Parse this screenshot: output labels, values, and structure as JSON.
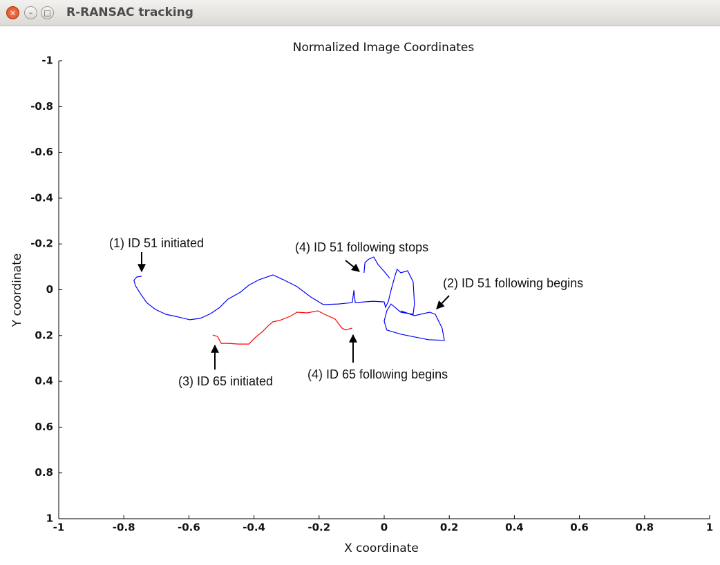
{
  "window_title": "R-RANSAC tracking",
  "chart_data": {
    "type": "line",
    "title": "Normalized Image Coordinates",
    "xlabel": "X coordinate",
    "ylabel": "Y coordinate",
    "xlim": [
      -1,
      1
    ],
    "ylim": [
      -1,
      1
    ],
    "y_reversed": true,
    "xticks": [
      -1,
      -0.8,
      -0.6,
      -0.4,
      -0.2,
      0,
      0.2,
      0.4,
      0.6,
      0.8,
      1
    ],
    "yticks": [
      -1,
      -0.8,
      -0.6,
      -0.4,
      -0.2,
      0,
      0.2,
      0.4,
      0.6,
      0.8,
      1
    ],
    "series": [
      {
        "color": "#0000ff",
        "x": [
          -0.745,
          -0.76,
          -0.769,
          -0.764,
          -0.749,
          -0.73,
          -0.703,
          -0.671,
          -0.633,
          -0.597,
          -0.565,
          -0.533,
          -0.505,
          -0.48,
          -0.442,
          -0.416,
          -0.384,
          -0.342,
          -0.31,
          -0.268,
          -0.225,
          -0.187,
          -0.14,
          -0.098,
          -0.093,
          -0.089,
          -0.034,
          0,
          0.004,
          0.013,
          0.021,
          0.034,
          0.04,
          0.051,
          0.072,
          0.089,
          0.093,
          0.089,
          0.051,
          0.021,
          0.008,
          0,
          0.008,
          0.051,
          0.093,
          0.136,
          0.185,
          0.178,
          0.157,
          0.14,
          0.093,
          0.051,
          null,
          -0.062,
          -0.059,
          -0.047,
          -0.032,
          -0.019,
          0,
          0.017
        ],
        "values": [
          -0.059,
          -0.056,
          -0.041,
          -0.017,
          0.017,
          0.056,
          0.086,
          0.107,
          0.119,
          0.131,
          0.125,
          0.104,
          0.077,
          0.041,
          0.011,
          -0.02,
          -0.044,
          -0.065,
          -0.044,
          -0.014,
          0.032,
          0.065,
          0.062,
          0.056,
          0.002,
          0.056,
          0.05,
          0.053,
          0.077,
          0.05,
          0.002,
          -0.065,
          -0.089,
          -0.074,
          -0.083,
          -0.035,
          0.062,
          0.107,
          0.098,
          0.062,
          0.092,
          0.137,
          0.176,
          0.194,
          0.206,
          0.218,
          0.221,
          0.167,
          0.107,
          0.098,
          0.113,
          0.092,
          null,
          -0.074,
          -0.119,
          -0.134,
          -0.143,
          -0.11,
          -0.08,
          -0.05
        ]
      },
      {
        "color": "#ff0000",
        "x": [
          -0.527,
          -0.512,
          -0.501,
          -0.48,
          -0.448,
          -0.416,
          -0.395,
          -0.374,
          -0.357,
          -0.342,
          -0.321,
          -0.289,
          -0.268,
          -0.236,
          -0.204,
          -0.183,
          -0.151,
          -0.13,
          -0.119,
          -0.098
        ],
        "values": [
          0.198,
          0.204,
          0.234,
          0.234,
          0.237,
          0.237,
          0.207,
          0.183,
          0.158,
          0.14,
          0.134,
          0.116,
          0.098,
          0.101,
          0.092,
          0.107,
          0.128,
          0.167,
          0.176,
          0.167
        ]
      }
    ],
    "annotations": [
      "(1) ID 51 initiated",
      "(4) ID 51 following stops",
      "(2) ID 51 following begins",
      "(3) ID 65 initiated",
      "(4) ID 65 following begins"
    ]
  }
}
